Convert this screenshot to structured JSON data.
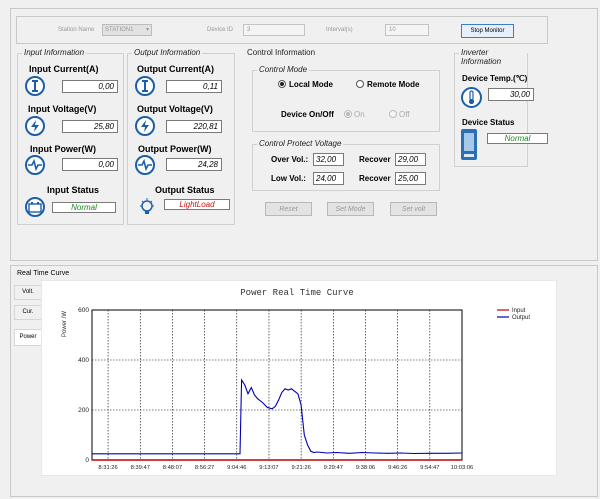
{
  "header": {
    "station_name_label": "Station Name",
    "station_name_value": "STATION1",
    "device_id_label": "Device ID",
    "device_id_value": "3",
    "interval_label": "Interval(s)",
    "interval_value": "10",
    "stop_monitor_label": "Stop Monitor"
  },
  "input_info": {
    "title": "Input Information",
    "current_label": "Input Current(A)",
    "current_value": "0,00",
    "voltage_label": "Input Voltage(V)",
    "voltage_value": "25,80",
    "power_label": "Input Power(W)",
    "power_value": "0,00",
    "status_label": "Input Status",
    "status_value": "Normal",
    "status_color": "#1a8a1a"
  },
  "output_info": {
    "title": "Output Information",
    "current_label": "Output Current(A)",
    "current_value": "0,11",
    "voltage_label": "Output Voltage(V)",
    "voltage_value": "220,81",
    "power_label": "Output Power(W)",
    "power_value": "24,28",
    "status_label": "Output Status",
    "status_value": "LightLoad",
    "status_color": "#c01818"
  },
  "control_info": {
    "title": "Control Information",
    "mode_title": "Control Mode",
    "local_mode_label": "Local Mode",
    "remote_mode_label": "Remote Mode",
    "onoff_label": "Device On/Off",
    "on_label": "On",
    "off_label": "Off",
    "protect_title": "Control Protect Voltage",
    "over_vol_label": "Over Vol.:",
    "over_vol_value": "32,00",
    "over_recover_label": "Recover",
    "over_recover_value": "29,00",
    "low_vol_label": "Low Vol.:",
    "low_vol_value": "24,00",
    "low_recover_label": "Recover",
    "low_recover_value": "25,00",
    "reset_label": "Reset",
    "set_mode_label": "Set Mode",
    "set_volt_label": "Set volt"
  },
  "inverter_info": {
    "title": "Inverter Information",
    "temp_label": "Device Temp.(℃)",
    "temp_value": "30,00",
    "status_label": "Device Status",
    "status_value": "Normal",
    "status_color": "#1a8a1a"
  },
  "realtime": {
    "section_title": "Real Time Curve",
    "tabs": [
      "Volt.",
      "Cur.",
      "Power"
    ]
  },
  "icons": {
    "current": "current-i-icon",
    "voltage": "lightning-icon",
    "power": "pulse-icon",
    "input_status": "battery-icon",
    "output_status": "bulb-icon",
    "temp": "thermometer-icon",
    "device_status": "inverter-device-icon"
  },
  "chart_data": {
    "type": "line",
    "title": "Power Real Time Curve",
    "ylabel": "Power /W",
    "xlabel": "",
    "ylim": [
      0,
      600
    ],
    "yticks": [
      0,
      200,
      400,
      600
    ],
    "xticks": [
      "8:31:26",
      "8:39:47",
      "8:48:07",
      "8:56:27",
      "9:04:46",
      "9:13:07",
      "9:21:26",
      "9:29:47",
      "9:38:06",
      "9:46:26",
      "9:54:47",
      "10:03:06"
    ],
    "grid": true,
    "legend": "top-right",
    "series": [
      {
        "name": "Input",
        "color": "#c00000",
        "x": [
          0,
          11.5
        ],
        "y": [
          0,
          0
        ]
      },
      {
        "name": "Output",
        "color": "#0000b0",
        "x": [
          0,
          4.6,
          4.65,
          4.75,
          4.85,
          4.95,
          5.05,
          5.15,
          5.3,
          5.45,
          5.6,
          5.7,
          5.8,
          5.9,
          6.0,
          6.1,
          6.2,
          6.3,
          6.4,
          6.5,
          6.55,
          6.6,
          6.7,
          6.8,
          6.9,
          7.0,
          7.3,
          7.6,
          8.0,
          8.4,
          8.8,
          9.2,
          9.6,
          10.0,
          10.5,
          11.0,
          11.5
        ],
        "y": [
          25,
          25,
          320,
          300,
          265,
          290,
          260,
          245,
          230,
          210,
          205,
          215,
          240,
          270,
          285,
          280,
          285,
          275,
          265,
          220,
          160,
          100,
          60,
          35,
          30,
          32,
          28,
          30,
          27,
          30,
          28,
          27,
          28,
          26,
          27,
          27,
          28
        ]
      }
    ]
  }
}
